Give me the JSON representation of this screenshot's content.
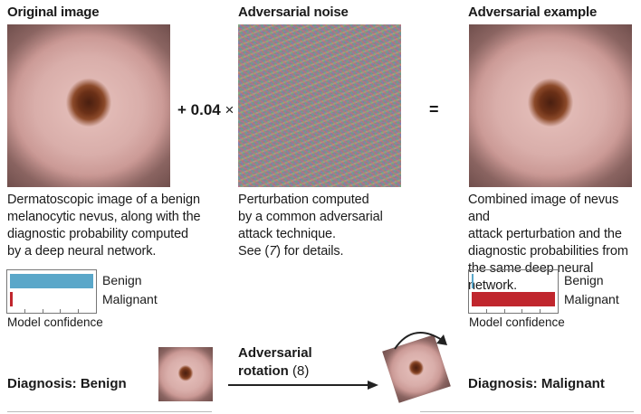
{
  "panels": {
    "original": {
      "title": "Original image",
      "caption": "Dermatoscopic image of a benign melanocytic nevus, along with the diagnostic probability computed by a deep neural network.",
      "lines": [
        "Dermatoscopic image of a benign",
        "melanocytic nevus, along with the",
        "diagnostic probability computed",
        "by a deep neural network."
      ]
    },
    "noise": {
      "title": "Adversarial noise",
      "lines": [
        "Perturbation computed",
        "by a common adversarial",
        "attack technique."
      ],
      "see_prefix": "See (",
      "see_ref": "7",
      "see_suffix": ") for details."
    },
    "adversarial": {
      "title": "Adversarial example",
      "lines": [
        "Combined image of nevus and",
        "attack perturbation and the",
        "diagnostic probabilities from",
        "the same deep neural network."
      ]
    }
  },
  "operators": {
    "coefficient": "+ 0.04",
    "times": "×",
    "equals": "="
  },
  "confidence_charts": [
    {
      "axis_label": "Model confidence",
      "bars": [
        {
          "label": "Benign",
          "value": 1.0,
          "color": "#5aa7c9"
        },
        {
          "label": "Malignant",
          "value": 0.03,
          "color": "#c0262d"
        }
      ]
    },
    {
      "axis_label": "Model confidence",
      "bars": [
        {
          "label": "Benign",
          "value": 0.02,
          "color": "#5aa7c9"
        },
        {
          "label": "Malignant",
          "value": 1.0,
          "color": "#c0262d"
        }
      ]
    }
  ],
  "bottom": {
    "diagnosis_left": "Diagnosis: Benign",
    "rotation_title": "Adversarial",
    "rotation_word": "rotation",
    "rotation_ref": "(8)",
    "diagnosis_right": "Diagnosis: Malignant"
  }
}
